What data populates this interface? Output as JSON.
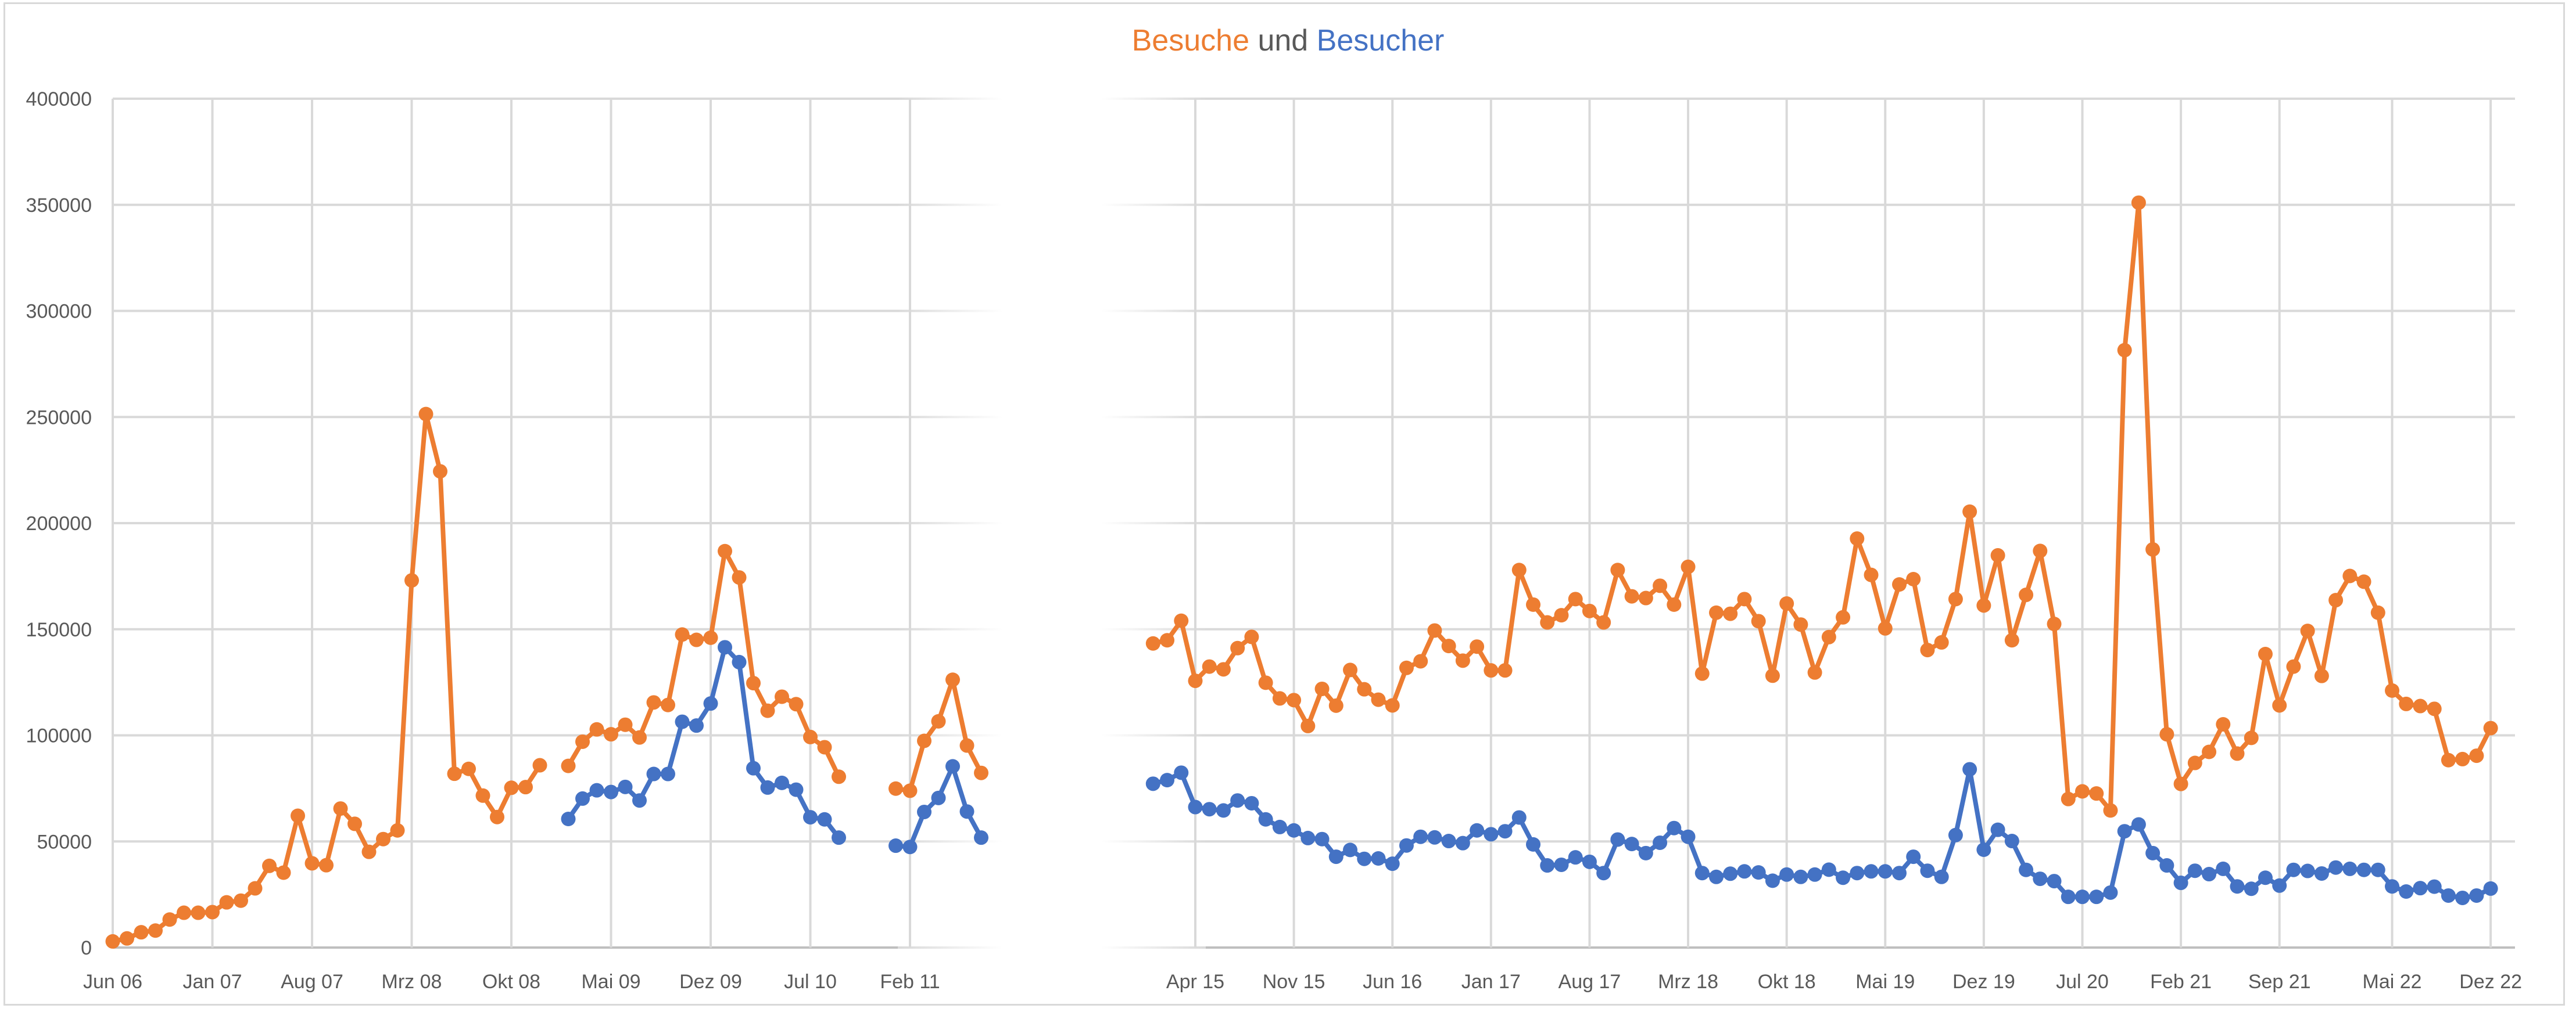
{
  "chart_data": {
    "type": "line",
    "title": {
      "part1": "Besuche",
      "part2": "und",
      "part3": "Besucher"
    },
    "xlabel": "",
    "ylabel": "",
    "ylim": [
      0,
      400000
    ],
    "y_ticks": [
      "0",
      "50000",
      "100000",
      "150000",
      "200000",
      "250000",
      "300000",
      "350000",
      "400000"
    ],
    "grid": true,
    "legend": "none (series named by colored title words)",
    "colors": {
      "Besuche": "#ed7d31",
      "Besucher": "#4472c4",
      "grid": "#d9d9d9",
      "text": "#595959"
    },
    "segments": [
      {
        "name": "2006-2011",
        "x_unit": "months since Jun 06",
        "x_range": [
          0,
          62
        ],
        "ticks": [
          {
            "x": 0,
            "label": "Jun 06"
          },
          {
            "x": 7,
            "label": "Jan 07"
          },
          {
            "x": 14,
            "label": "Aug 07"
          },
          {
            "x": 21,
            "label": "Mrz 08"
          },
          {
            "x": 28,
            "label": "Okt 08"
          },
          {
            "x": 35,
            "label": "Mai 09"
          },
          {
            "x": 42,
            "label": "Dez 09"
          },
          {
            "x": 49,
            "label": "Jul 10"
          },
          {
            "x": 56,
            "label": "Feb 11"
          }
        ],
        "series": [
          {
            "name": "Besuche",
            "values": [
              2900,
              4300,
              7200,
              8000,
              13200,
              16400,
              16400,
              16700,
              21300,
              22100,
              27900,
              38500,
              35300,
              62100,
              39700,
              38800,
              65500,
              58300,
              45100,
              51100,
              55200,
              173000,
              251400,
              224400,
              81900,
              84200,
              71600,
              61500,
              75300,
              75600,
              85900,
              null,
              85600,
              97000,
              102800,
              100500,
              105000,
              99000,
              115500,
              114300,
              147500,
              145000,
              146000,
              186800,
              174400,
              124600,
              111600,
              118200,
              114700,
              99200,
              94400,
              80500,
              null,
              null,
              null,
              74900,
              73900,
              97400,
              106600,
              126200,
              95200,
              82300
            ]
          },
          {
            "name": "Besucher",
            "values": [
              null,
              null,
              null,
              null,
              null,
              null,
              null,
              null,
              null,
              null,
              null,
              null,
              null,
              null,
              null,
              null,
              null,
              null,
              null,
              null,
              null,
              null,
              null,
              null,
              null,
              null,
              null,
              null,
              null,
              null,
              null,
              null,
              60600,
              70200,
              74100,
              73300,
              75700,
              69300,
              81800,
              81800,
              106400,
              104600,
              115000,
              141500,
              134500,
              84500,
              75400,
              77600,
              74400,
              61400,
              60400,
              51800,
              null,
              null,
              null,
              48000,
              47400,
              63900,
              70500,
              85400,
              64100,
              51800
            ]
          }
        ]
      },
      {
        "name": "2015-2022",
        "x_unit": "months since Jan 15",
        "x_range": [
          0,
          95
        ],
        "ticks": [
          {
            "x": 3,
            "label": "Apr 15"
          },
          {
            "x": 10,
            "label": "Nov 15"
          },
          {
            "x": 17,
            "label": "Jun 16"
          },
          {
            "x": 24,
            "label": "Jan 17"
          },
          {
            "x": 31,
            "label": "Aug 17"
          },
          {
            "x": 38,
            "label": "Mrz 18"
          },
          {
            "x": 45,
            "label": "Okt 18"
          },
          {
            "x": 52,
            "label": "Mai 19"
          },
          {
            "x": 59,
            "label": "Dez 19"
          },
          {
            "x": 66,
            "label": "Jul 20"
          },
          {
            "x": 73,
            "label": "Feb 21"
          },
          {
            "x": 80,
            "label": "Sep 21"
          },
          {
            "x": 88,
            "label": "Mai 22"
          },
          {
            "x": 95,
            "label": "Dez 22"
          }
        ],
        "series": [
          {
            "name": "Besuche",
            "values": [
              143300,
              144800,
              154000,
              125700,
              132400,
              131100,
              141100,
              146400,
              124800,
              117400,
              116600,
              104400,
              121900,
              114000,
              130800,
              121700,
              116800,
              114100,
              131800,
              134900,
              149400,
              142100,
              135200,
              141800,
              130600,
              130600,
              177900,
              161600,
              153200,
              156600,
              164200,
              158600,
              153200,
              177900,
              165500,
              164700,
              170500,
              161600,
              179400,
              129100,
              157800,
              157300,
              164200,
              153800,
              128100,
              162100,
              152200,
              129600,
              146300,
              155600,
              192700,
              175600,
              150400,
              171100,
              173600,
              140200,
              143800,
              164200,
              205400,
              161200,
              184800,
              144800,
              166200,
              186900,
              152500,
              70000,
              73600,
              72600,
              64600,
              281500,
              351000,
              187600,
              100500,
              77100,
              87000,
              92200,
              105200,
              91400,
              98800,
              138300,
              114100,
              132400,
              149200,
              128000,
              163700,
              175100,
              172400,
              157800,
              121100,
              114800,
              113800,
              112500,
              88300,
              88800,
              90400,
              103400
            ]
          },
          {
            "name": "Besucher",
            "values": [
              77200,
              78900,
              82400,
              66200,
              65200,
              64600,
              69300,
              68000,
              60400,
              56800,
              55200,
              51600,
              51100,
              42800,
              46000,
              41800,
              42000,
              39500,
              48100,
              52200,
              51900,
              50200,
              49200,
              55200,
              53400,
              54800,
              61300,
              48600,
              38700,
              39000,
              42500,
              40400,
              35100,
              50900,
              48800,
              44500,
              49400,
              56300,
              52200,
              35100,
              33300,
              34800,
              35900,
              35400,
              31500,
              34400,
              33300,
              34400,
              36700,
              32900,
              35100,
              35900,
              35900,
              35100,
              42800,
              36200,
              33300,
              53000,
              84000,
              46100,
              55500,
              50200,
              36600,
              32400,
              31300,
              23900,
              23900,
              23900,
              25900,
              54800,
              58000,
              44500,
              38700,
              30500,
              36200,
              34600,
              37100,
              28800,
              27700,
              32900,
              29200,
              36600,
              36100,
              34900,
              37700,
              37100,
              36600,
              36600,
              28800,
              26400,
              28000,
              28700,
              24500,
              23400,
              24500,
              27800
            ]
          }
        ]
      }
    ]
  }
}
